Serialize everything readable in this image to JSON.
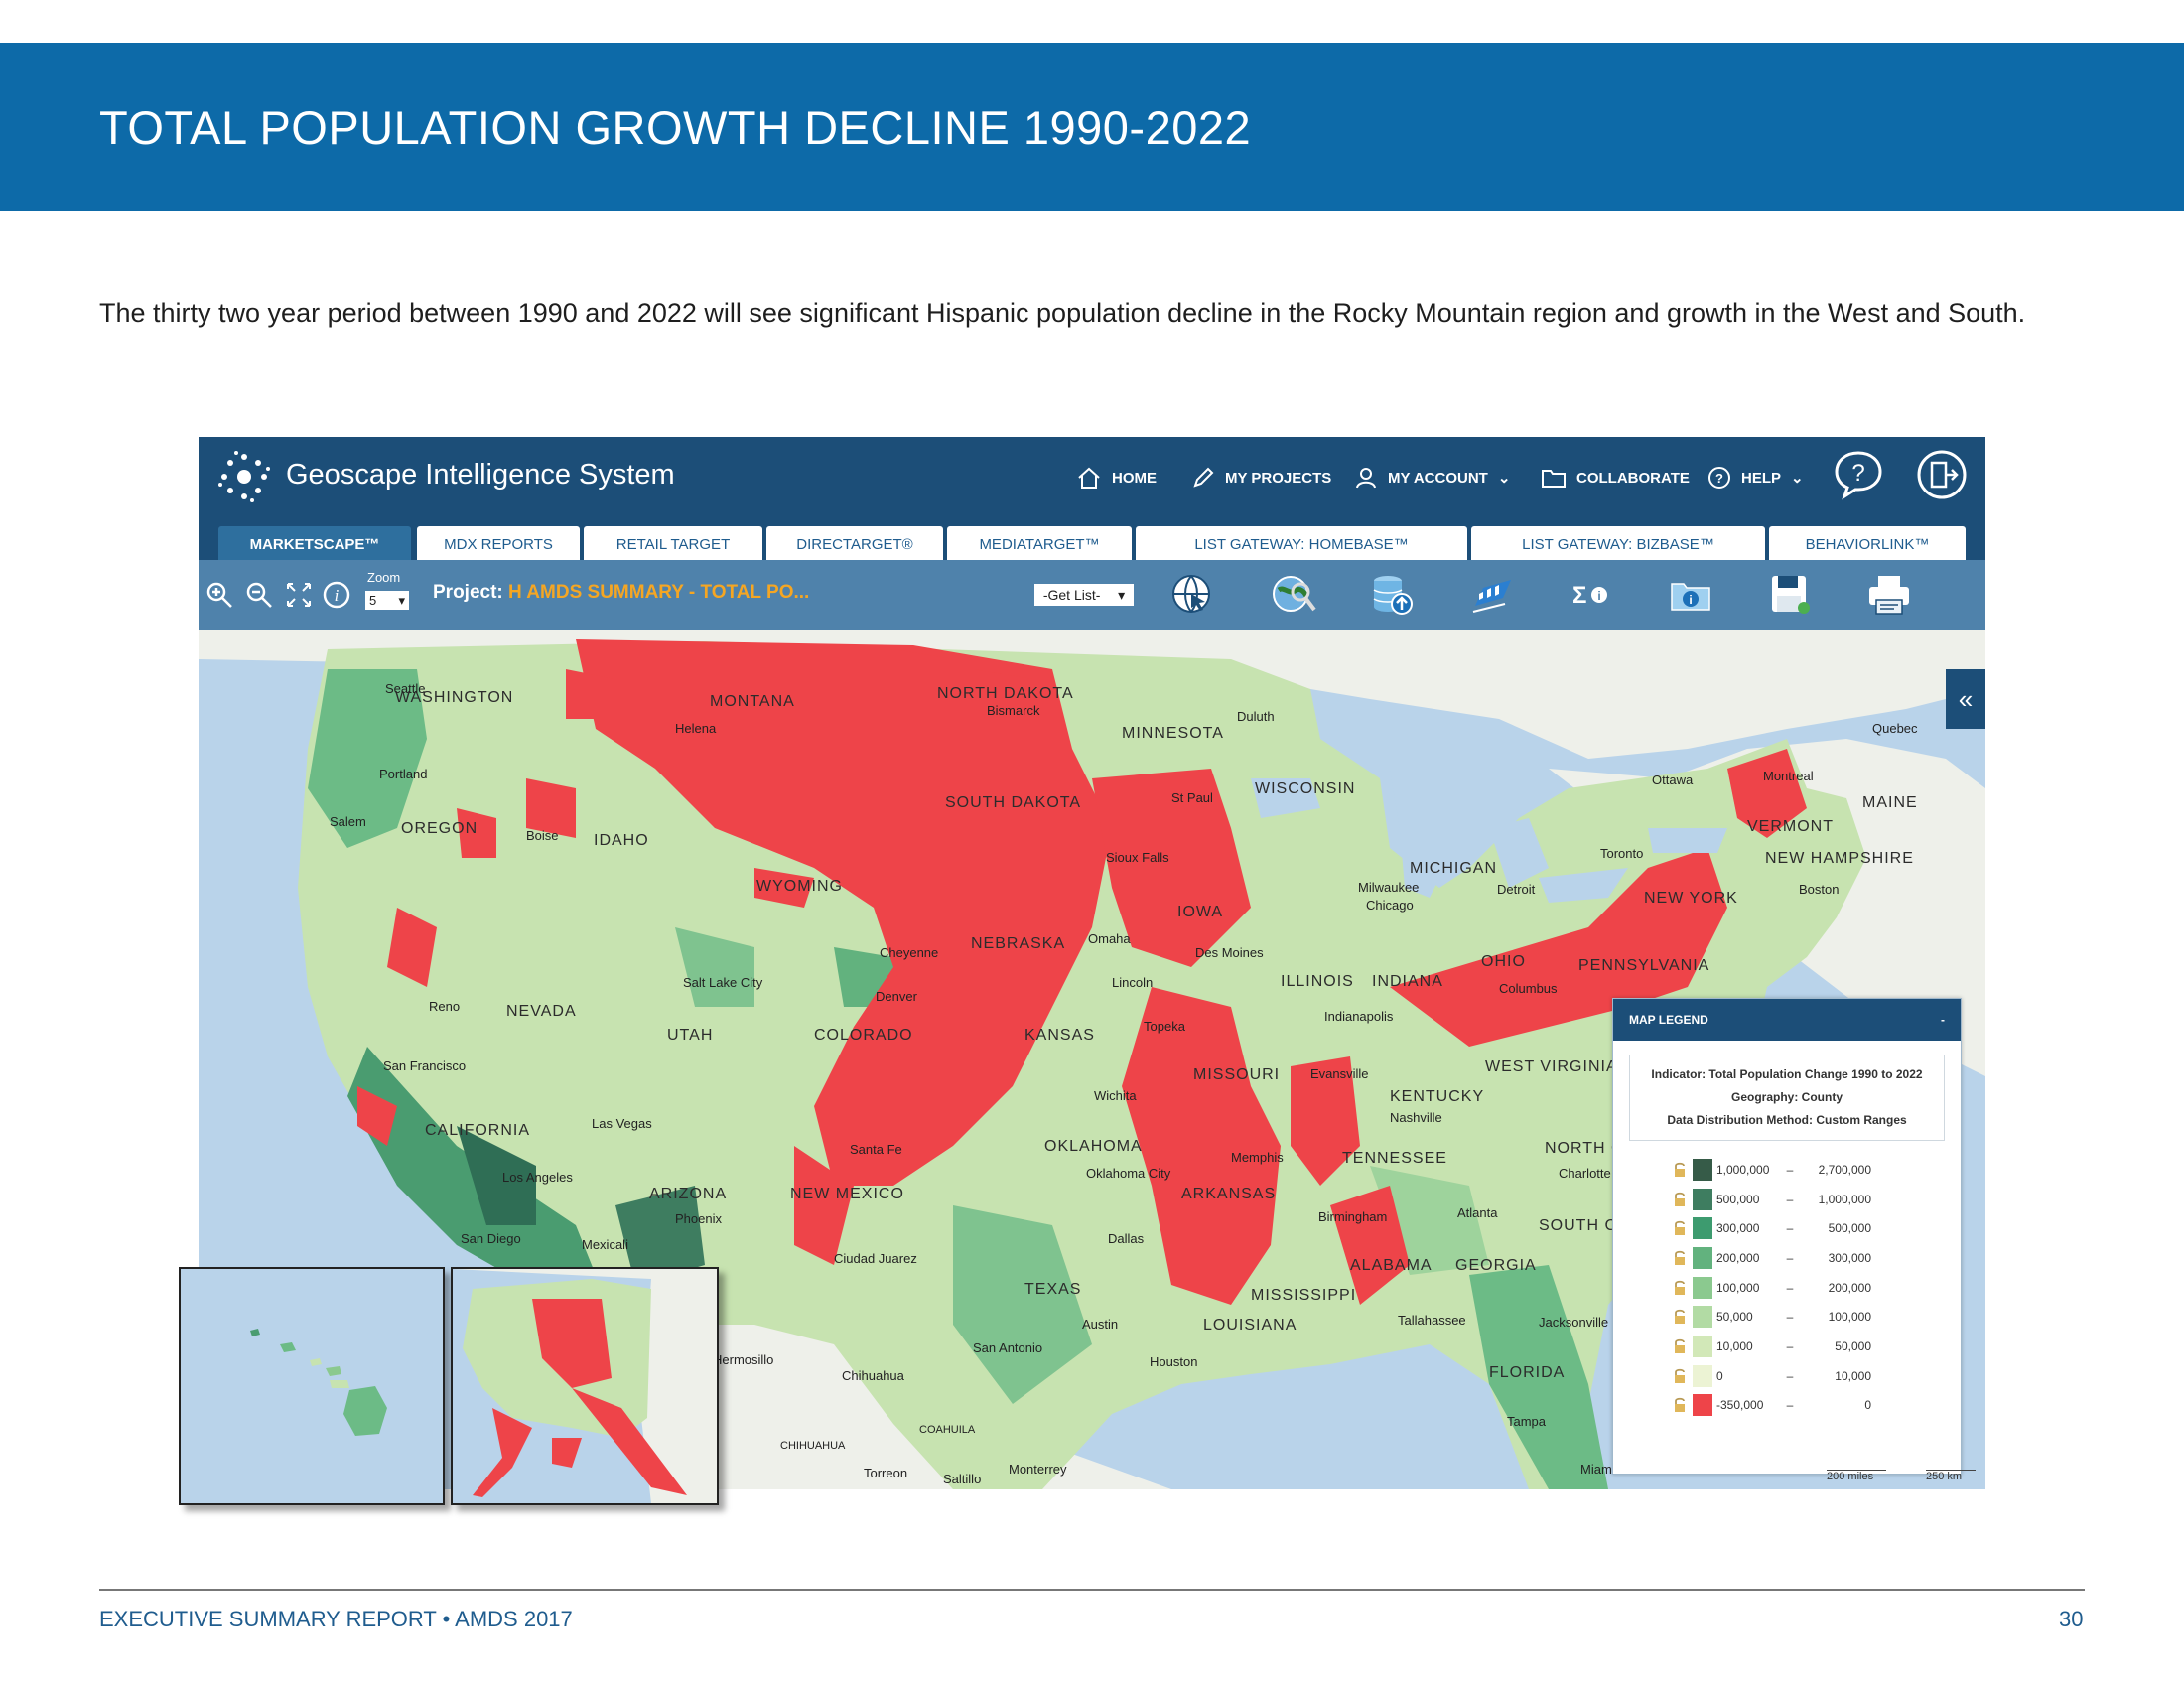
{
  "page": {
    "title": "TOTAL POPULATION GROWTH DECLINE 1990-2022",
    "intro": "The thirty two year period between 1990 and 2022 will see significant Hispanic population decline in the Rocky Mountain region and growth in the West and South.",
    "footer_left": "EXECUTIVE SUMMARY REPORT  •  AMDS 2017",
    "footer_right": "30"
  },
  "app": {
    "title": "Geoscape Intelligence System",
    "nav": [
      "HOME",
      "MY PROJECTS",
      "MY ACCOUNT",
      "COLLABORATE",
      "HELP"
    ],
    "tabs": [
      "MARKETSCAPE™",
      "MDX REPORTS",
      "RETAIL TARGET",
      "DIRECTARGET®",
      "MEDIATARGET™",
      "LIST GATEWAY: HOMEBASE™",
      "LIST GATEWAY: BIZBASE™",
      "BEHAVIORLINK™"
    ],
    "active_tab": "MARKETSCAPE™",
    "toolbar": {
      "zoom_label": "Zoom",
      "zoom_value": "5",
      "project_label": "Project:",
      "project_value": "H AMDS SUMMARY - TOTAL PO...",
      "get_list": "-Get List-"
    }
  },
  "map": {
    "states": [
      "WASHINGTON",
      "MONTANA",
      "NORTH DAKOTA",
      "MINNESOTA",
      "OREGON",
      "IDAHO",
      "SOUTH DAKOTA",
      "WISCONSIN",
      "WYOMING",
      "NEBRASKA",
      "IOWA",
      "MICHIGAN",
      "NEVADA",
      "UTAH",
      "COLORADO",
      "KANSAS",
      "MISSOURI",
      "ILLINOIS",
      "INDIANA",
      "OHIO",
      "PENNSYLVANIA",
      "NEW YORK",
      "VERMONT",
      "NEW HAMPSHIRE",
      "MAINE",
      "CALIFORNIA",
      "ARIZONA",
      "NEW MEXICO",
      "OKLAHOMA",
      "ARKANSAS",
      "TENNESSEE",
      "KENTUCKY",
      "WEST VIRGINIA",
      "NORTH C",
      "SOUTH C",
      "GEORGIA",
      "ALABAMA",
      "MISSISSIPPI",
      "LOUISIANA",
      "TEXAS",
      "FLORIDA"
    ],
    "cities": [
      "Seattle",
      "Helena",
      "Bismarck",
      "Duluth",
      "Quebec",
      "Portland",
      "Salem",
      "Boise",
      "St Paul",
      "Ottawa",
      "Montreal",
      "Sioux Falls",
      "Toronto",
      "Milwaukee",
      "Chicago",
      "Detroit",
      "Boston",
      "Cheyenne",
      "Omaha",
      "Des Moines",
      "Salt Lake City",
      "Denver",
      "Lincoln",
      "Columbus",
      "Reno",
      "Topeka",
      "Indianapolis",
      "San Francisco",
      "Wichita",
      "Evansville",
      "Nashville",
      "Las Vegas",
      "Santa Fe",
      "Memphis",
      "Charlotte",
      "Los Angeles",
      "Oklahoma City",
      "Phoenix",
      "Birmingham",
      "Atlanta",
      "San Diego",
      "Mexicali",
      "Dallas",
      "Ciudad Juarez",
      "Austin",
      "Tallahassee",
      "Jacksonville",
      "San Antonio",
      "Houston",
      "Hermosillo",
      "Chihuahua",
      "Tampa",
      "Miami",
      "Torreon",
      "Saltillo",
      "Monterrey",
      "COAHUILA",
      "CHIHUAHUA"
    ],
    "scale_miles": "200 miles",
    "scale_km": "250 km"
  },
  "legend": {
    "title": "MAP LEGEND",
    "collapse": "-",
    "indicator": "Indicator: Total Population Change 1990 to 2022",
    "geography": "Geography: County",
    "method": "Data Distribution Method: Custom Ranges",
    "rows": [
      {
        "min": "1,000,000",
        "max": "2,700,000",
        "color": "#365b48"
      },
      {
        "min": "500,000",
        "max": "1,000,000",
        "color": "#3e7d60"
      },
      {
        "min": "300,000",
        "max": "500,000",
        "color": "#3d9b6f"
      },
      {
        "min": "200,000",
        "max": "300,000",
        "color": "#62b27e"
      },
      {
        "min": "100,000",
        "max": "200,000",
        "color": "#8bc98f"
      },
      {
        "min": "50,000",
        "max": "100,000",
        "color": "#b2dba4"
      },
      {
        "min": "10,000",
        "max": "50,000",
        "color": "#d2e8b8"
      },
      {
        "min": "0",
        "max": "10,000",
        "color": "#ecf3d4"
      },
      {
        "min": "-350,000",
        "max": "0",
        "color": "#ee4449"
      }
    ]
  },
  "colors": {
    "banner": "#0d6aa8",
    "app_header": "#1c4e78",
    "toolbar": "#4f82ab",
    "decline": "#ee4449",
    "project_accent": "#f5a623"
  }
}
